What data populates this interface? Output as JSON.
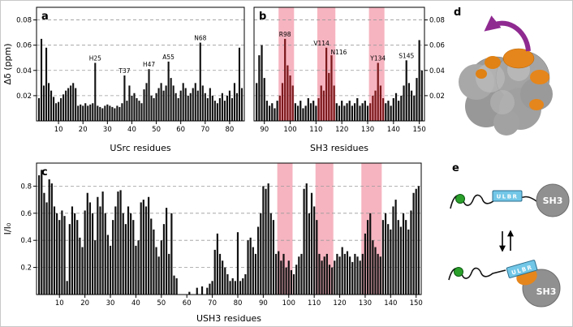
{
  "panels": {
    "a": {
      "label": "a"
    },
    "b": {
      "label": "b"
    },
    "c": {
      "label": "c"
    },
    "d": {
      "label": "d"
    },
    "e": {
      "label": "e"
    }
  },
  "colors": {
    "bar": "#111111",
    "band": "#f6b4c0",
    "band_bar": "#7b181b",
    "grid": "#9a9a9a",
    "surface_gray": "#9c9c9c",
    "patch_orange": "#e5861c",
    "ribbon_purple": "#8f2a91",
    "ulbr_cyan": "#72c7e7",
    "dot_green": "#2aa02a"
  },
  "schematic_e": {
    "ulbr_label": "ULBR",
    "sh3_label": "SH3"
  },
  "chart_data": [
    {
      "id": "a",
      "type": "bar",
      "title": "",
      "xlabel": "USrc residues",
      "ylabel": "Δδ (ppm)",
      "xlim": [
        1,
        86
      ],
      "ylim": [
        0,
        0.09
      ],
      "xticks": [
        10,
        20,
        30,
        40,
        50,
        60,
        70,
        80
      ],
      "yticks": [
        0.02,
        0.04,
        0.06,
        0.08
      ],
      "grid": "dashed-horizontal",
      "bar_color": "#111111",
      "x_start": 2,
      "values": [
        0.018,
        0.065,
        0.028,
        0.058,
        0.03,
        0.024,
        0.019,
        0.014,
        0.015,
        0.018,
        0.021,
        0.024,
        0.026,
        0.028,
        0.03,
        0.026,
        0.012,
        0.013,
        0.012,
        0.014,
        0.012,
        0.013,
        0.014,
        0.046,
        0.012,
        0.011,
        0.01,
        0.012,
        0.013,
        0.012,
        0.011,
        0.01,
        0.012,
        0.011,
        0.014,
        0.036,
        0.016,
        0.028,
        0.02,
        0.022,
        0.018,
        0.016,
        0.014,
        0.025,
        0.03,
        0.041,
        0.02,
        0.018,
        0.022,
        0.026,
        0.03,
        0.024,
        0.028,
        0.047,
        0.034,
        0.028,
        0.022,
        0.018,
        0.024,
        0.03,
        0.026,
        0.02,
        0.022,
        0.026,
        0.03,
        0.024,
        0.062,
        0.028,
        0.022,
        0.018,
        0.026,
        0.02,
        0.016,
        0.014,
        0.018,
        0.022,
        0.016,
        0.02,
        0.024,
        0.018,
        0.03,
        0.022,
        0.058,
        0.026
      ],
      "annotations": [
        {
          "residue": 25,
          "label": "H25"
        },
        {
          "residue": 37,
          "label": "T37"
        },
        {
          "residue": 47,
          "label": "H47"
        },
        {
          "residue": 55,
          "label": "A55"
        },
        {
          "residue": 68,
          "label": "N68"
        }
      ],
      "highlight_bands": []
    },
    {
      "id": "b",
      "type": "bar",
      "title": "",
      "xlabel": "SH3 residues",
      "ylabel": "",
      "xlim": [
        86,
        152
      ],
      "ylim": [
        0,
        0.09
      ],
      "xticks": [
        90,
        100,
        110,
        120,
        130,
        140,
        150
      ],
      "yticks": [
        0.02,
        0.04,
        0.06,
        0.08
      ],
      "grid": "dashed-horizontal",
      "axis_side": "right",
      "bar_color": "#111111",
      "band_color": "#f6b4c0",
      "band_bar_color": "#7b181b",
      "x_start": 87,
      "values": [
        0.03,
        0.052,
        0.06,
        0.034,
        0.016,
        0.012,
        0.014,
        0.01,
        0.016,
        0.02,
        0.03,
        0.065,
        0.044,
        0.036,
        0.028,
        0.014,
        0.012,
        0.016,
        0.01,
        0.012,
        0.018,
        0.014,
        0.016,
        0.012,
        0.018,
        0.028,
        0.024,
        0.058,
        0.038,
        0.052,
        0.028,
        0.014,
        0.012,
        0.016,
        0.012,
        0.014,
        0.016,
        0.012,
        0.014,
        0.018,
        0.012,
        0.014,
        0.016,
        0.012,
        0.014,
        0.02,
        0.024,
        0.046,
        0.028,
        0.018,
        0.014,
        0.016,
        0.012,
        0.018,
        0.022,
        0.016,
        0.02,
        0.028,
        0.048,
        0.03,
        0.024,
        0.02,
        0.034,
        0.064,
        0.04
      ],
      "annotations": [
        {
          "residue": 98,
          "label": "R98"
        },
        {
          "residue": 114,
          "label": "V114",
          "dx": -6
        },
        {
          "residue": 116,
          "label": "N116",
          "dx": 9,
          "dy": 2
        },
        {
          "residue": 134,
          "label": "Y134"
        },
        {
          "residue": 145,
          "label": "S145"
        }
      ],
      "highlight_bands": [
        {
          "from": 95.5,
          "to": 101.5
        },
        {
          "from": 110.5,
          "to": 117.5
        },
        {
          "from": 130.5,
          "to": 136.5
        }
      ]
    },
    {
      "id": "c",
      "type": "bar",
      "title": "",
      "xlabel": "USH3 residues",
      "ylabel": "I/I₀",
      "xlim": [
        1,
        152
      ],
      "ylim": [
        0,
        0.97
      ],
      "xticks": [
        10,
        20,
        30,
        40,
        50,
        60,
        70,
        80,
        90,
        100,
        110,
        120,
        130,
        140,
        150
      ],
      "yticks": [
        0.2,
        0.4,
        0.6,
        0.8
      ],
      "grid": "dashed-horizontal",
      "bar_color": "#111111",
      "band_color": "#f6b4c0",
      "x_start": 2,
      "values": [
        0.88,
        0.92,
        0.75,
        0.68,
        0.85,
        0.82,
        0.65,
        0.6,
        0.55,
        0.62,
        0.58,
        0.1,
        0.52,
        0.65,
        0.6,
        0.55,
        0.42,
        0.35,
        0.62,
        0.75,
        0.68,
        0.6,
        0.4,
        0.72,
        0.65,
        0.76,
        0.6,
        0.44,
        0.36,
        0.55,
        0.65,
        0.76,
        0.77,
        0.6,
        0.52,
        0.65,
        0.6,
        0.55,
        0.36,
        0.4,
        0.68,
        0.7,
        0.65,
        0.72,
        0.56,
        0.48,
        0.35,
        0.28,
        0.4,
        0.52,
        0.64,
        0.3,
        0.6,
        0.14,
        0.12,
        0,
        0,
        0,
        0,
        0.02,
        0,
        0,
        0.05,
        0,
        0.06,
        0,
        0.05,
        0.08,
        0.1,
        0.33,
        0.45,
        0.3,
        0.25,
        0.2,
        0.15,
        0.1,
        0.12,
        0.1,
        0.46,
        0.1,
        0.12,
        0.15,
        0.4,
        0.42,
        0.35,
        0.3,
        0.5,
        0.6,
        0.8,
        0.78,
        0.82,
        0.6,
        0.55,
        0.3,
        0.32,
        0.25,
        0.3,
        0.2,
        0.25,
        0.18,
        0.15,
        0.22,
        0.28,
        0.3,
        0.78,
        0.82,
        0.6,
        0.75,
        0.65,
        0.55,
        0.3,
        0.25,
        0.28,
        0.3,
        0.22,
        0.2,
        0.25,
        0.3,
        0.28,
        0.35,
        0.3,
        0.32,
        0.28,
        0.24,
        0.3,
        0.28,
        0.25,
        0.3,
        0.45,
        0.55,
        0.6,
        0.4,
        0.35,
        0.3,
        0.28,
        0.55,
        0.6,
        0.52,
        0.48,
        0.65,
        0.7,
        0.55,
        0.5,
        0.6,
        0.55,
        0.48,
        0.62,
        0.75,
        0.78,
        0.8
      ],
      "annotations": [],
      "highlight_bands": [
        {
          "from": 95.5,
          "to": 101.5
        },
        {
          "from": 110.5,
          "to": 117.5
        },
        {
          "from": 128.5,
          "to": 136.5
        }
      ]
    }
  ]
}
